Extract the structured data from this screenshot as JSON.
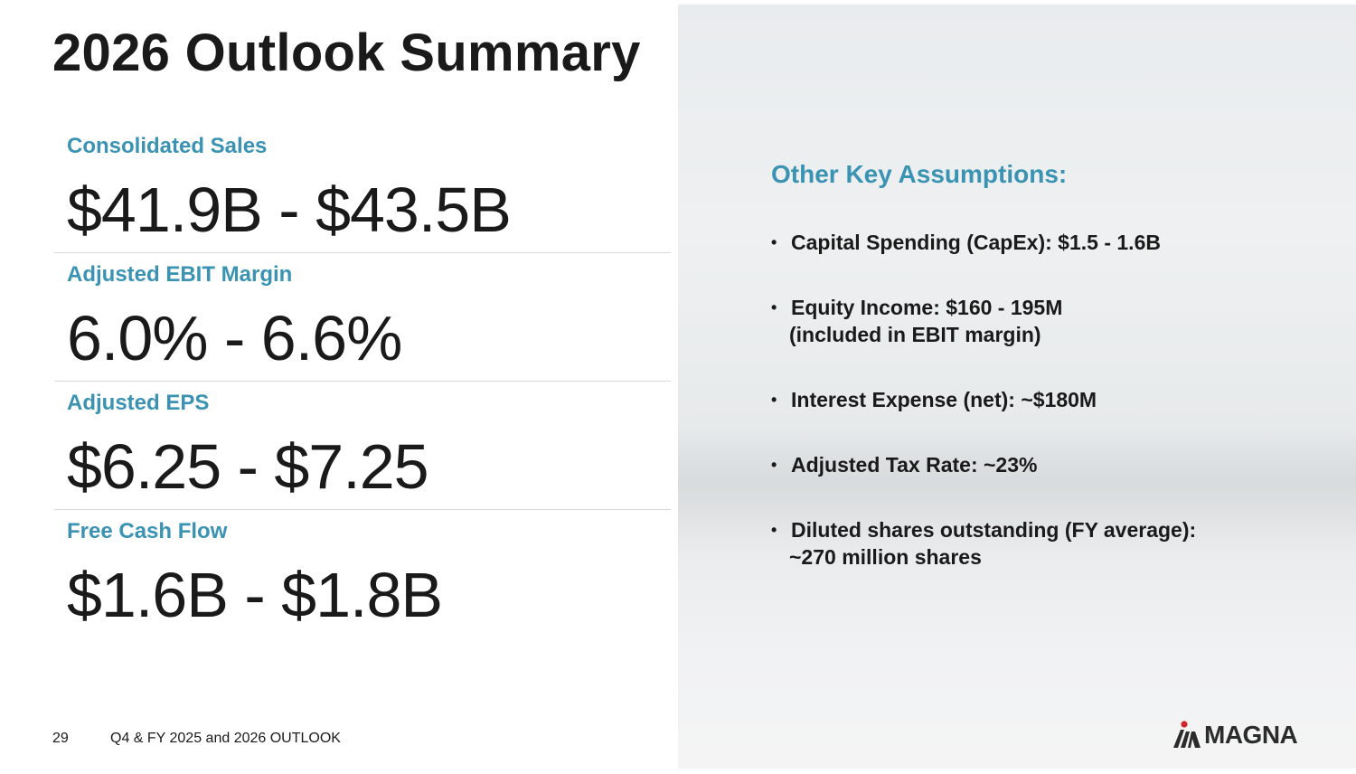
{
  "title": "2026 Outlook Summary",
  "metrics": [
    {
      "label": "Consolidated Sales",
      "value": "$41.9B - $43.5B"
    },
    {
      "label": "Adjusted EBIT Margin",
      "value": "6.0% - 6.6%"
    },
    {
      "label": "Adjusted EPS",
      "value": "$6.25 - $7.25"
    },
    {
      "label": "Free Cash Flow",
      "value": "$1.6B - $1.8B"
    }
  ],
  "assumptions": {
    "heading": "Other Key Assumptions:",
    "items": [
      {
        "line1": "Capital Spending (CapEx): $1.5 - 1.6B",
        "line2": ""
      },
      {
        "line1": "Equity Income: $160 - 195M",
        "line2": "(included in EBIT margin)"
      },
      {
        "line1": "Interest Expense (net): ~$180M",
        "line2": ""
      },
      {
        "line1": "Adjusted Tax Rate: ~23%",
        "line2": ""
      },
      {
        "line1": "Diluted shares outstanding (FY average):",
        "line2": "~270 million shares"
      }
    ]
  },
  "footer": {
    "page_number": "29",
    "text": "Q4 & FY 2025 and 2026 OUTLOOK"
  },
  "logo": {
    "text": "MAGNA",
    "accent_color": "#d2232a"
  },
  "colors": {
    "accent": "#3a93b3",
    "text": "#1a1a1a"
  }
}
